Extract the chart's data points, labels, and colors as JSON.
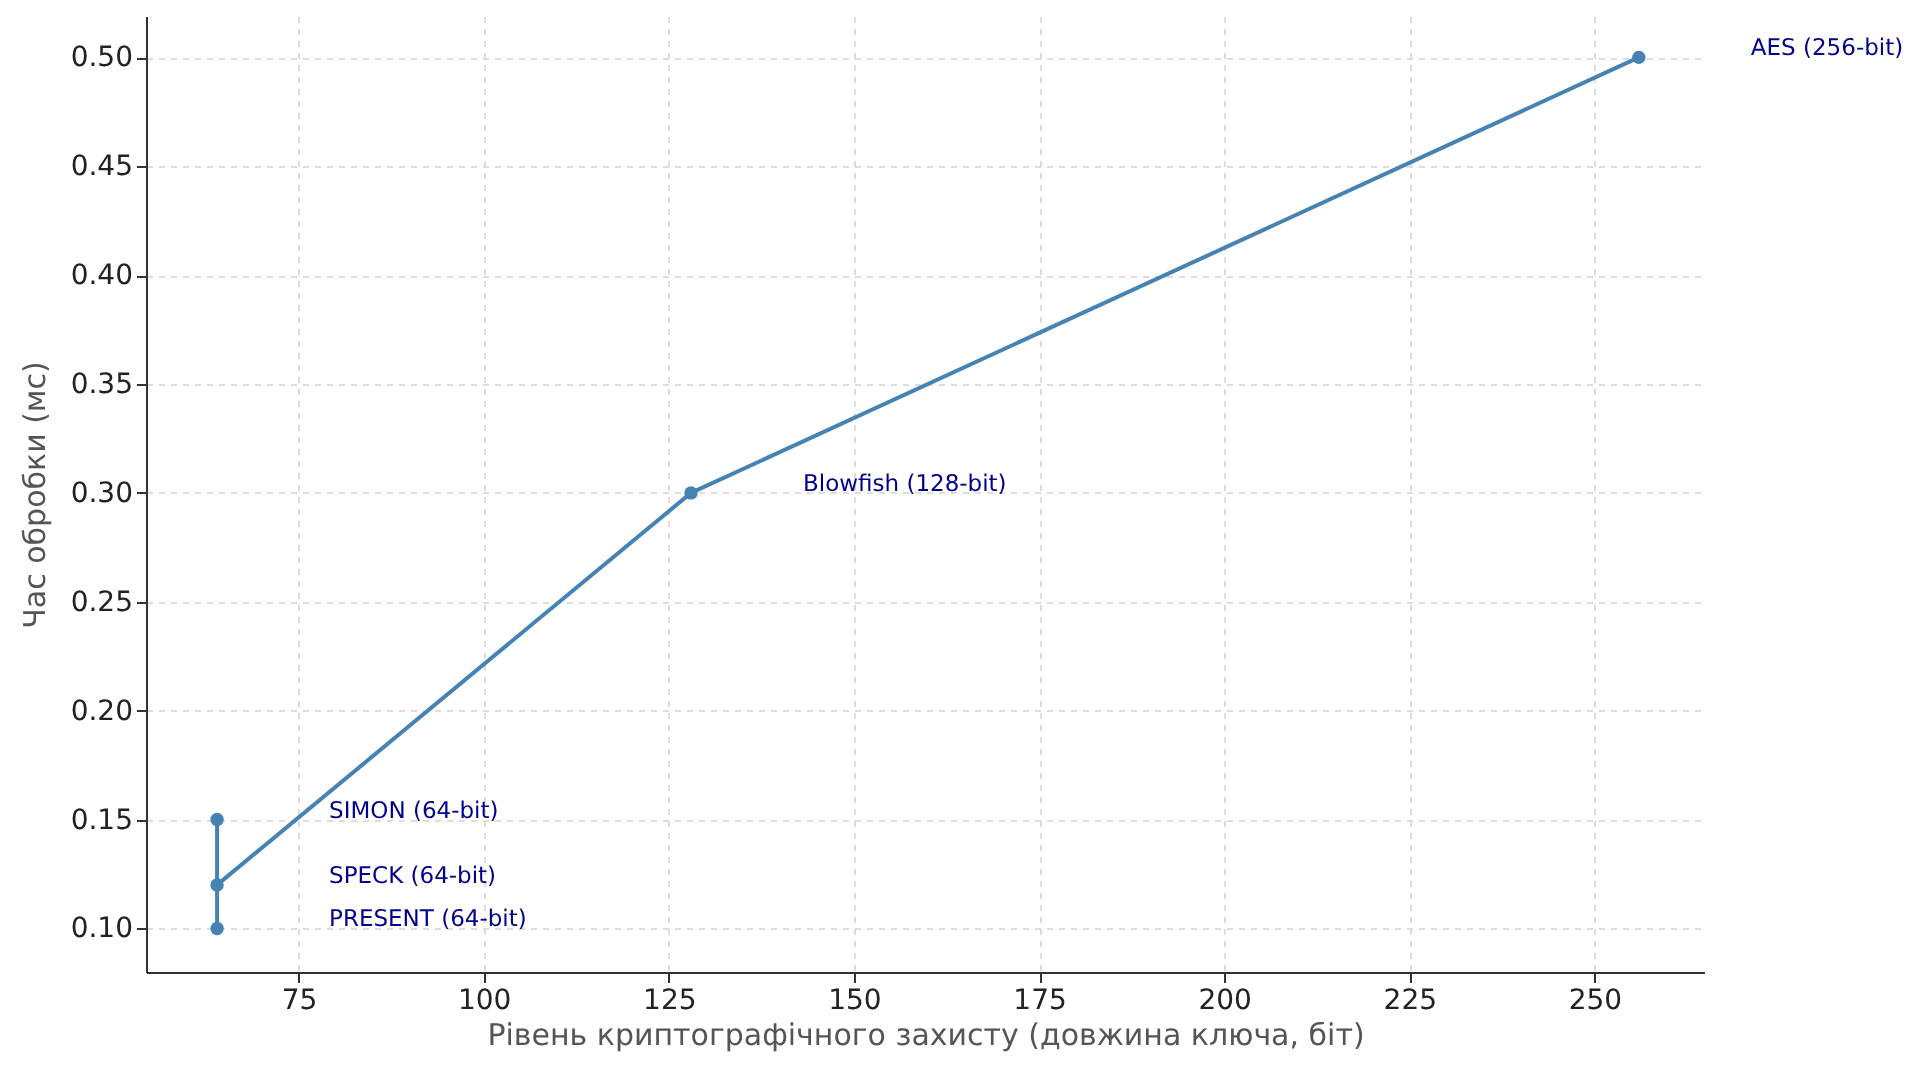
{
  "chart_data": {
    "type": "line",
    "xlabel": "Рівень криптографічного захисту (довжина ключа, біт)",
    "ylabel": "Час обробки (мс)",
    "x": [
      64,
      64,
      64,
      128,
      256
    ],
    "series": [
      {
        "color": "#4682b4",
        "values": [
          0.1,
          0.15,
          0.12,
          0.3,
          0.5
        ]
      }
    ],
    "xlim": [
      54.4,
      264.8
    ],
    "xticks": [
      75,
      100,
      125,
      150,
      175,
      200,
      225,
      250
    ],
    "ylim": [
      0.08,
      0.519
    ],
    "yticks": [
      {
        "value": 0.1,
        "label": "0.10"
      },
      {
        "value": 0.15,
        "label": "0.15"
      },
      {
        "value": 0.2,
        "label": "0.20"
      },
      {
        "value": 0.25,
        "label": "0.25"
      },
      {
        "value": 0.3,
        "label": "0.30"
      },
      {
        "value": 0.35,
        "label": "0.35"
      },
      {
        "value": 0.4,
        "label": "0.40"
      },
      {
        "value": 0.45,
        "label": "0.45"
      },
      {
        "value": 0.5,
        "label": "0.50"
      }
    ],
    "grid": true,
    "marker": "circle",
    "line_style": "solid",
    "annotations": [
      "PRESENT (64-bit)",
      "SIMON (64-bit)",
      "SPECK (64-bit)",
      "Blowfish (128-bit)",
      "AES (256-bit)"
    ]
  }
}
